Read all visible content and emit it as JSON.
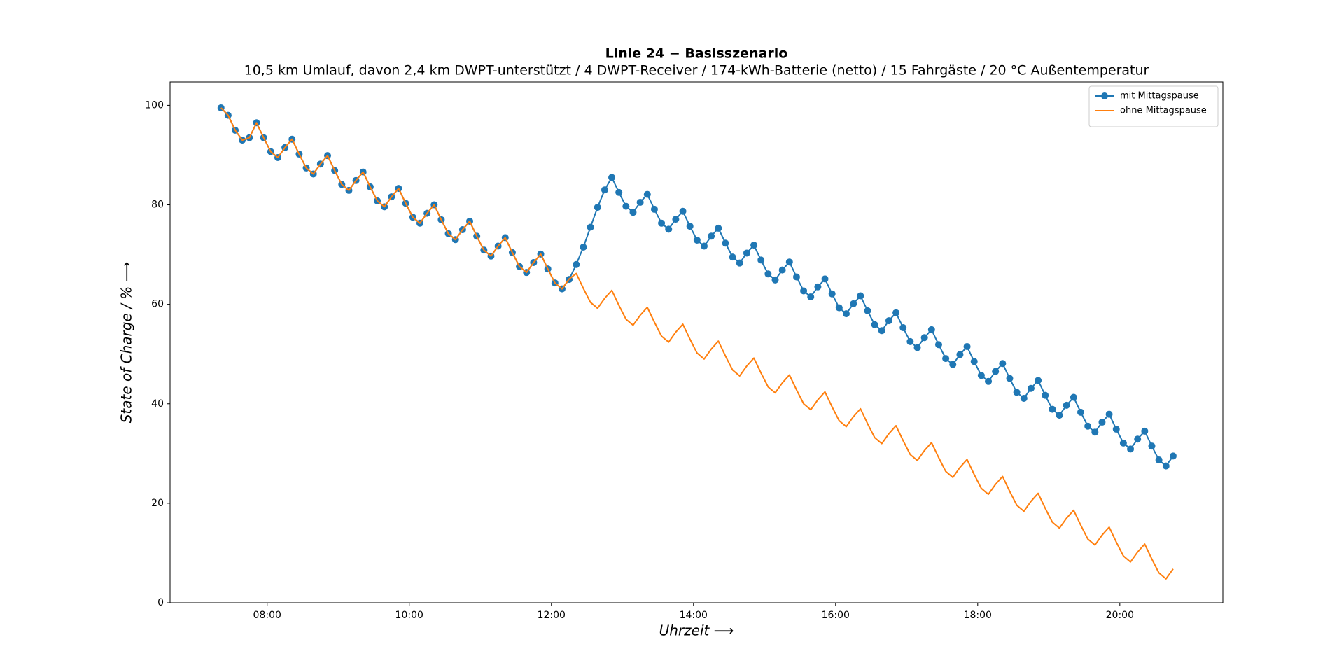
{
  "chart_data": {
    "type": "line",
    "title": "Linie 24  −  Basisszenario",
    "subtitle": "10,5 km Umlauf, davon 2,4 km DWPT-unterstützt / 4 DWPT-Receiver / 174-kWh-Batterie (netto) / 15 Fahrgäste / 20 °C Außentemperatur",
    "x_label": "Uhrzeit ⟶",
    "y_label": "State of Charge / % ⟶",
    "x": [
      "07:21",
      "07:27",
      "07:33",
      "07:39",
      "07:45",
      "07:51",
      "07:57",
      "08:03",
      "08:09",
      "08:15",
      "08:21",
      "08:27",
      "08:33",
      "08:39",
      "08:45",
      "08:51",
      "08:57",
      "09:03",
      "09:09",
      "09:15",
      "09:21",
      "09:27",
      "09:33",
      "09:39",
      "09:45",
      "09:51",
      "09:57",
      "10:03",
      "10:09",
      "10:15",
      "10:21",
      "10:27",
      "10:33",
      "10:39",
      "10:45",
      "10:51",
      "10:57",
      "11:03",
      "11:09",
      "11:15",
      "11:21",
      "11:27",
      "11:33",
      "11:39",
      "11:45",
      "11:51",
      "11:57",
      "12:03",
      "12:09",
      "12:15",
      "12:21",
      "12:27",
      "12:33",
      "12:39",
      "12:45",
      "12:51",
      "12:57",
      "13:03",
      "13:09",
      "13:15",
      "13:21",
      "13:27",
      "13:33",
      "13:39",
      "13:45",
      "13:51",
      "13:57",
      "14:03",
      "14:09",
      "14:15",
      "14:21",
      "14:27",
      "14:33",
      "14:39",
      "14:45",
      "14:51",
      "14:57",
      "15:03",
      "15:09",
      "15:15",
      "15:21",
      "15:27",
      "15:33",
      "15:39",
      "15:45",
      "15:51",
      "15:57",
      "16:03",
      "16:09",
      "16:15",
      "16:21",
      "16:27",
      "16:33",
      "16:39",
      "16:45",
      "16:51",
      "16:57",
      "17:03",
      "17:09",
      "17:15",
      "17:21",
      "17:27",
      "17:33",
      "17:39",
      "17:45",
      "17:51",
      "17:57",
      "18:03",
      "18:09",
      "18:15",
      "18:21",
      "18:27",
      "18:33",
      "18:39",
      "18:45",
      "18:51",
      "18:57",
      "19:03",
      "19:09",
      "19:15",
      "19:21",
      "19:27",
      "19:33",
      "19:39",
      "19:45",
      "19:51",
      "19:57",
      "20:03",
      "20:09",
      "20:15",
      "20:21",
      "20:27",
      "20:33",
      "20:39",
      "20:45"
    ],
    "series": [
      {
        "name": "mit Mittagspause",
        "color": "#1f77b4",
        "marker": true,
        "values": [
          99.5,
          98,
          95,
          93,
          93.5,
          96.5,
          93.5,
          90.7,
          89.5,
          91.5,
          93.2,
          90.2,
          87.4,
          86.2,
          88.2,
          89.9,
          86.9,
          84.1,
          82.9,
          84.9,
          86.6,
          83.6,
          80.8,
          79.6,
          81.6,
          83.3,
          80.3,
          77.5,
          76.3,
          78.3,
          80.0,
          77.0,
          74.2,
          73.0,
          75.0,
          76.7,
          73.7,
          70.9,
          69.7,
          71.7,
          73.4,
          70.4,
          67.6,
          66.4,
          68.4,
          70.1,
          67.1,
          64.3,
          63.1,
          65,
          68,
          71.5,
          75.5,
          79.5,
          83,
          85.5,
          82.5,
          79.7,
          78.5,
          80.5,
          82.1,
          79.1,
          76.3,
          75.1,
          77.1,
          78.7,
          75.7,
          72.9,
          71.7,
          73.7,
          75.3,
          72.3,
          69.5,
          68.3,
          70.3,
          71.9,
          68.9,
          66.1,
          64.9,
          66.9,
          68.5,
          65.5,
          62.7,
          61.5,
          63.5,
          65.1,
          62.1,
          59.3,
          58.1,
          60.1,
          61.7,
          58.7,
          55.9,
          54.7,
          56.7,
          58.3,
          55.3,
          52.5,
          51.3,
          53.3,
          54.9,
          51.9,
          49.1,
          47.9,
          49.9,
          51.5,
          48.5,
          45.7,
          44.5,
          46.5,
          48.1,
          45.1,
          42.3,
          41.1,
          43.1,
          44.7,
          41.7,
          38.9,
          37.7,
          39.7,
          41.3,
          38.3,
          35.5,
          34.3,
          36.3,
          37.9,
          34.9,
          32.1,
          30.9,
          32.9,
          34.5,
          31.5,
          28.7,
          27.5,
          29.5
        ]
      },
      {
        "name": "ohne Mittagspause",
        "color": "#ff7f0e",
        "marker": false,
        "values": [
          99.5,
          98,
          95,
          93,
          93.5,
          96.5,
          93.5,
          90.7,
          89.5,
          91.5,
          93.2,
          90.2,
          87.4,
          86.2,
          88.2,
          89.9,
          86.9,
          84.1,
          82.9,
          84.9,
          86.6,
          83.6,
          80.8,
          79.6,
          81.6,
          83.3,
          80.3,
          77.5,
          76.3,
          78.3,
          80.0,
          77.0,
          74.2,
          73.0,
          75.0,
          76.7,
          73.7,
          70.9,
          69.7,
          71.7,
          73.4,
          70.4,
          67.6,
          66.4,
          68.4,
          70.1,
          67.1,
          64.3,
          63.1,
          65.1,
          66.2,
          63.2,
          60.4,
          59.2,
          61.2,
          62.8,
          59.8,
          57.0,
          55.8,
          57.8,
          59.4,
          56.4,
          53.6,
          52.4,
          54.4,
          56.0,
          53.0,
          50.2,
          49.0,
          51.0,
          52.6,
          49.6,
          46.8,
          45.6,
          47.6,
          49.2,
          46.2,
          43.4,
          42.2,
          44.2,
          45.8,
          42.8,
          40.0,
          38.8,
          40.8,
          42.4,
          39.4,
          36.6,
          35.4,
          37.4,
          39.0,
          36.0,
          33.2,
          32.0,
          34.0,
          35.6,
          32.6,
          29.8,
          28.6,
          30.6,
          32.2,
          29.2,
          26.4,
          25.2,
          27.2,
          28.8,
          25.8,
          23.0,
          21.8,
          23.8,
          25.4,
          22.4,
          19.6,
          18.4,
          20.4,
          22.0,
          19.0,
          16.2,
          15.0,
          17.0,
          18.6,
          15.6,
          12.8,
          11.6,
          13.6,
          15.2,
          12.2,
          9.4,
          8.2,
          10.2,
          11.8,
          8.8,
          6.0,
          4.8,
          6.8
        ]
      }
    ],
    "xlim": [
      "06:38",
      "21:27"
    ],
    "xticks": [
      "08:00",
      "10:00",
      "12:00",
      "14:00",
      "16:00",
      "18:00",
      "20:00"
    ],
    "ylim": [
      0,
      104.7
    ],
    "yticks": [
      0,
      20,
      40,
      60,
      80,
      100
    ],
    "grid": false,
    "legend": "upper right"
  }
}
